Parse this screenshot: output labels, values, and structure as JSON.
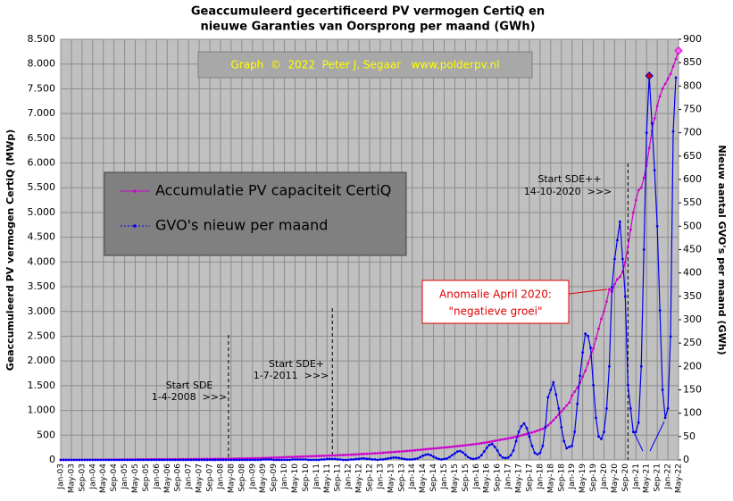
{
  "chart_data": {
    "type": "line",
    "title": [
      "Geaccumuleerd gecertificeerd PV vermogen CertiQ en",
      "nieuwe Garanties van Oorsprong per maand (GWh)"
    ],
    "watermark": "Graph  ©  2022  Peter J. Segaar   www.polderpv.nl",
    "ylabel": "Geaccumuleerd PV vermogen CertiQ (MWp)",
    "y2label": "Nieuw aantal GVO's per maand (GWh)",
    "annotations": [
      [
        "Start SDE",
        "1-4-2008  >>>"
      ],
      [
        "Start SDE+",
        "1-7-2011  >>>"
      ],
      [
        "Start SDE++",
        "14-10-2020  >>>"
      ],
      [
        "Anomalie  April 2020:",
        "\"negatieve groei\""
      ]
    ],
    "categories": [
      "Jan-03",
      null,
      null,
      null,
      "May-03",
      null,
      null,
      null,
      "Sep-03",
      null,
      null,
      null,
      "Jan-04",
      null,
      null,
      null,
      "May-04",
      null,
      null,
      null,
      "Sep-04",
      null,
      null,
      null,
      "Jan-05",
      null,
      null,
      null,
      "May-05",
      null,
      null,
      null,
      "Sep-05",
      null,
      null,
      null,
      "Jan-06",
      null,
      null,
      null,
      "May-06",
      null,
      null,
      null,
      "Sep-06",
      null,
      null,
      null,
      "Jan-07",
      null,
      null,
      null,
      "May-07",
      null,
      null,
      null,
      "Sep-07",
      null,
      null,
      null,
      "Jan-08",
      null,
      null,
      null,
      "May-08",
      null,
      null,
      null,
      "Sep-08",
      null,
      null,
      null,
      "Jan-09",
      null,
      null,
      null,
      "May-09",
      null,
      null,
      null,
      "Sep-09",
      null,
      null,
      null,
      "Jan-10",
      null,
      null,
      null,
      "May-10",
      null,
      null,
      null,
      "Sep-10",
      null,
      null,
      null,
      "Jan-11",
      null,
      null,
      null,
      "May-11",
      null,
      null,
      null,
      "Sep-11",
      null,
      null,
      null,
      "Jan-12",
      null,
      null,
      null,
      "May-12",
      null,
      null,
      null,
      "Sep-12",
      null,
      null,
      null,
      "Jan-13",
      null,
      null,
      null,
      "May-13",
      null,
      null,
      null,
      "Sep-13",
      null,
      null,
      null,
      "Jan-14",
      null,
      null,
      null,
      "May-14",
      null,
      null,
      null,
      "Sep-14",
      null,
      null,
      null,
      "Jan-15",
      null,
      null,
      null,
      "May-15",
      null,
      null,
      null,
      "Sep-15",
      null,
      null,
      null,
      "Jan-16",
      null,
      null,
      null,
      "May-16",
      null,
      null,
      null,
      "Sep-16",
      null,
      null,
      null,
      "Jan-17",
      null,
      null,
      null,
      "May-17",
      null,
      null,
      null,
      "Sep-17",
      null,
      null,
      null,
      "Jan-18",
      null,
      null,
      null,
      "May-18",
      null,
      null,
      null,
      "Sep-18",
      null,
      null,
      null,
      "Jan-19",
      null,
      null,
      null,
      "May-19",
      null,
      null,
      null,
      "Sep-19",
      null,
      null,
      null,
      "Jan-20",
      null,
      null,
      null,
      "May-20",
      null,
      null,
      null,
      "Sep-20",
      null,
      null,
      null,
      "Jan-21",
      null,
      null,
      null,
      "May-21",
      null,
      null,
      null,
      "Sep-21",
      null,
      null,
      null,
      "Jan-22",
      null,
      null,
      null,
      "May-22"
    ],
    "series": [
      {
        "name": "Accumulatie PV capaciteit CertiQ",
        "color": "#cc00cc",
        "values": [
          1,
          1,
          1,
          2,
          2,
          2,
          2,
          3,
          3,
          3,
          3,
          4,
          4,
          4,
          5,
          5,
          5,
          6,
          6,
          6,
          7,
          7,
          7,
          8,
          8,
          8,
          9,
          9,
          9,
          10,
          10,
          10,
          11,
          11,
          11,
          12,
          12,
          12,
          13,
          13,
          13,
          14,
          14,
          14,
          15,
          15,
          15,
          16,
          16,
          16,
          17,
          17,
          18,
          18,
          19,
          19,
          20,
          20,
          21,
          21,
          22,
          22,
          23,
          24,
          25,
          26,
          27,
          28,
          29,
          30,
          31,
          32,
          33,
          34,
          35,
          36,
          38,
          40,
          42,
          44,
          46,
          48,
          50,
          52,
          54,
          56,
          58,
          60,
          62,
          64,
          66,
          68,
          70,
          72,
          74,
          76,
          78,
          80,
          82,
          84,
          86,
          88,
          90,
          92,
          94,
          96,
          98,
          100,
          103,
          106,
          109,
          112,
          115,
          118,
          121,
          124,
          127,
          130,
          133,
          136,
          140,
          144,
          148,
          152,
          156,
          160,
          164,
          168,
          172,
          176,
          180,
          185,
          190,
          195,
          200,
          205,
          210,
          215,
          220,
          225,
          230,
          235,
          240,
          245,
          250,
          255,
          260,
          266,
          272,
          278,
          284,
          290,
          296,
          302,
          308,
          315,
          322,
          330,
          338,
          346,
          355,
          365,
          375,
          385,
          395,
          405,
          415,
          425,
          435,
          445,
          455,
          468,
          482,
          496,
          510,
          525,
          540,
          555,
          570,
          590,
          610,
          630,
          660,
          700,
          750,
          800,
          860,
          920,
          980,
          1040,
          1100,
          1160,
          1300,
          1380,
          1460,
          1560,
          1680,
          1800,
          1950,
          2100,
          2250,
          2450,
          2650,
          2850,
          3000,
          3200,
          3450,
          3400,
          3550,
          3650,
          3700,
          3800,
          4000,
          4300,
          4650,
          5000,
          5250,
          5450,
          5500,
          5700,
          5950,
          6300,
          6650,
          6900,
          7150,
          7350,
          7500,
          7600,
          7700,
          7800,
          7950,
          8100,
          8270
        ]
      },
      {
        "name": "GVO's nieuw per maand",
        "color": "#0000ee",
        "axis": "y2",
        "values": [
          0,
          0,
          0,
          0,
          0,
          0,
          0,
          0,
          0,
          0,
          0,
          0,
          0,
          0,
          0,
          0,
          0,
          0,
          0,
          0,
          0,
          0,
          0,
          0,
          0,
          0,
          0,
          0,
          0,
          0,
          0,
          0,
          0,
          0,
          0,
          0,
          0,
          0,
          0,
          0,
          0,
          0,
          0,
          0,
          0,
          0,
          0,
          0,
          0,
          0,
          0,
          0,
          0,
          0,
          0,
          0,
          0,
          0,
          0,
          0,
          0,
          0,
          0,
          0,
          0,
          0,
          0,
          0,
          0,
          0,
          0,
          0,
          0,
          0,
          0,
          0,
          1,
          1,
          1,
          1,
          0,
          0,
          0,
          0,
          0,
          0,
          0,
          1,
          1,
          1,
          1,
          1,
          1,
          0,
          0,
          0,
          0,
          0,
          1,
          1,
          2,
          2,
          2,
          2,
          1,
          1,
          0,
          0,
          0,
          1,
          1,
          2,
          2,
          3,
          3,
          2,
          2,
          1,
          1,
          0,
          1,
          1,
          2,
          3,
          4,
          5,
          5,
          4,
          3,
          2,
          1,
          1,
          1,
          2,
          3,
          6,
          9,
          11,
          12,
          10,
          7,
          4,
          2,
          1,
          2,
          3,
          6,
          10,
          14,
          18,
          19,
          16,
          11,
          6,
          3,
          2,
          3,
          5,
          10,
          18,
          26,
          32,
          34,
          28,
          20,
          10,
          5,
          4,
          5,
          10,
          20,
          40,
          60,
          72,
          78,
          68,
          50,
          30,
          15,
          12,
          15,
          30,
          70,
          134,
          150,
          166,
          140,
          110,
          70,
          40,
          25,
          28,
          30,
          60,
          120,
          180,
          230,
          270,
          265,
          240,
          160,
          90,
          50,
          45,
          60,
          110,
          200,
          370,
          430,
          470,
          510,
          430,
          350,
          160,
          110,
          60,
          60,
          80,
          200,
          450,
          700,
          822,
          720,
          620,
          500,
          320,
          150,
          90,
          110,
          264,
          703,
          818,
          null
        ]
      }
    ],
    "ylim": [
      0,
      8500
    ],
    "yticks": [
      0,
      500,
      {
        "value": 1000,
        "label": "1.000"
      },
      {
        "value": 1500,
        "label": "1.500"
      },
      {
        "value": 2000,
        "label": "2.000"
      },
      {
        "value": 2500,
        "label": "2.500"
      },
      {
        "value": 3000,
        "label": "3.000"
      },
      {
        "value": 3500,
        "label": "3.500"
      },
      {
        "value": 4000,
        "label": "4.000"
      },
      {
        "value": 4500,
        "label": "4.500"
      },
      {
        "value": 5000,
        "label": "5.000"
      },
      {
        "value": 5500,
        "label": "5.500"
      },
      {
        "value": 6000,
        "label": "6.000"
      },
      {
        "value": 6500,
        "label": "6.500"
      },
      {
        "value": 7000,
        "label": "7.000"
      },
      {
        "value": 7500,
        "label": "7.500"
      },
      {
        "value": 8000,
        "label": "8.000"
      },
      {
        "value": 8500,
        "label": "8.500"
      }
    ],
    "y2lim": [
      0,
      900
    ],
    "y2ticks": [
      0,
      50,
      100,
      150,
      200,
      250,
      300,
      350,
      400,
      450,
      500,
      550,
      600,
      650,
      700,
      750,
      800,
      850,
      900
    ],
    "grid": true
  }
}
